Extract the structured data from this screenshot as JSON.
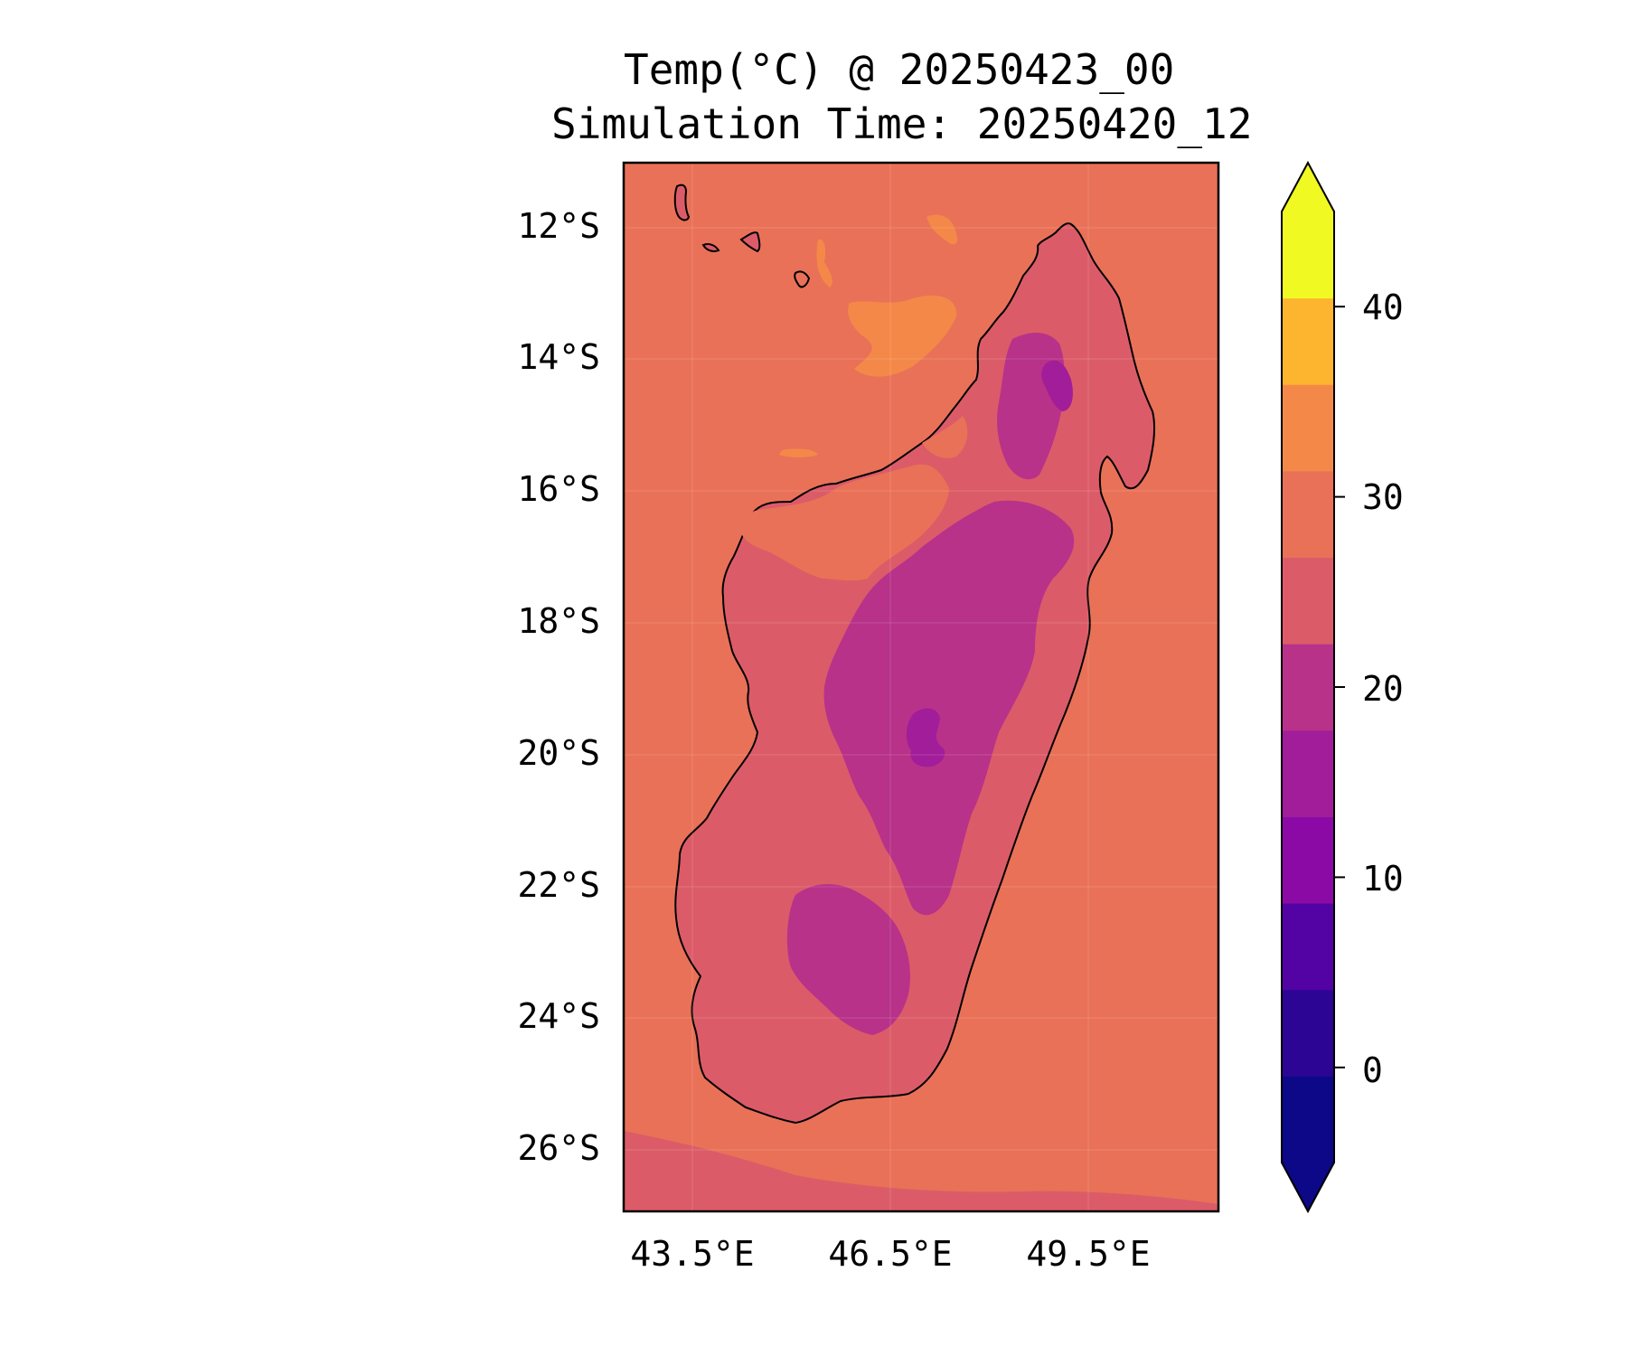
{
  "title_line1": "Temp(°C) @ 20250423_00",
  "title_line2": "Simulation Time: 20250420_12",
  "lat_labels": [
    "12°S",
    "14°S",
    "16°S",
    "18°S",
    "20°S",
    "22°S",
    "24°S",
    "26°S"
  ],
  "lon_labels": [
    "43.5°E",
    "46.5°E",
    "49.5°E"
  ],
  "colorbar": {
    "ticks": [
      "40",
      "30",
      "20",
      "10",
      "0"
    ],
    "levels": [
      -5,
      0,
      5,
      10,
      15,
      20,
      25,
      30,
      35,
      40,
      45
    ],
    "colors": [
      "#0d0887",
      "#2c0594",
      "#5302a3",
      "#8b0aa5",
      "#a21d9a",
      "#b83289",
      "#db5c68",
      "#e97158",
      "#f48849",
      "#fdb42f",
      "#f0f921"
    ],
    "under_color": "#0d0887",
    "over_color": "#f0f921"
  },
  "field_colors": {
    "ocean": "#e97158",
    "lowland": "#db5c68",
    "highland": "#b83289",
    "peak": "#a21d9a",
    "warm_sea": "#f48849"
  },
  "map_extent": {
    "lon_min": 42.5,
    "lon_max": 51.5,
    "lat_min": -26.9,
    "lat_max": -11.0
  }
}
